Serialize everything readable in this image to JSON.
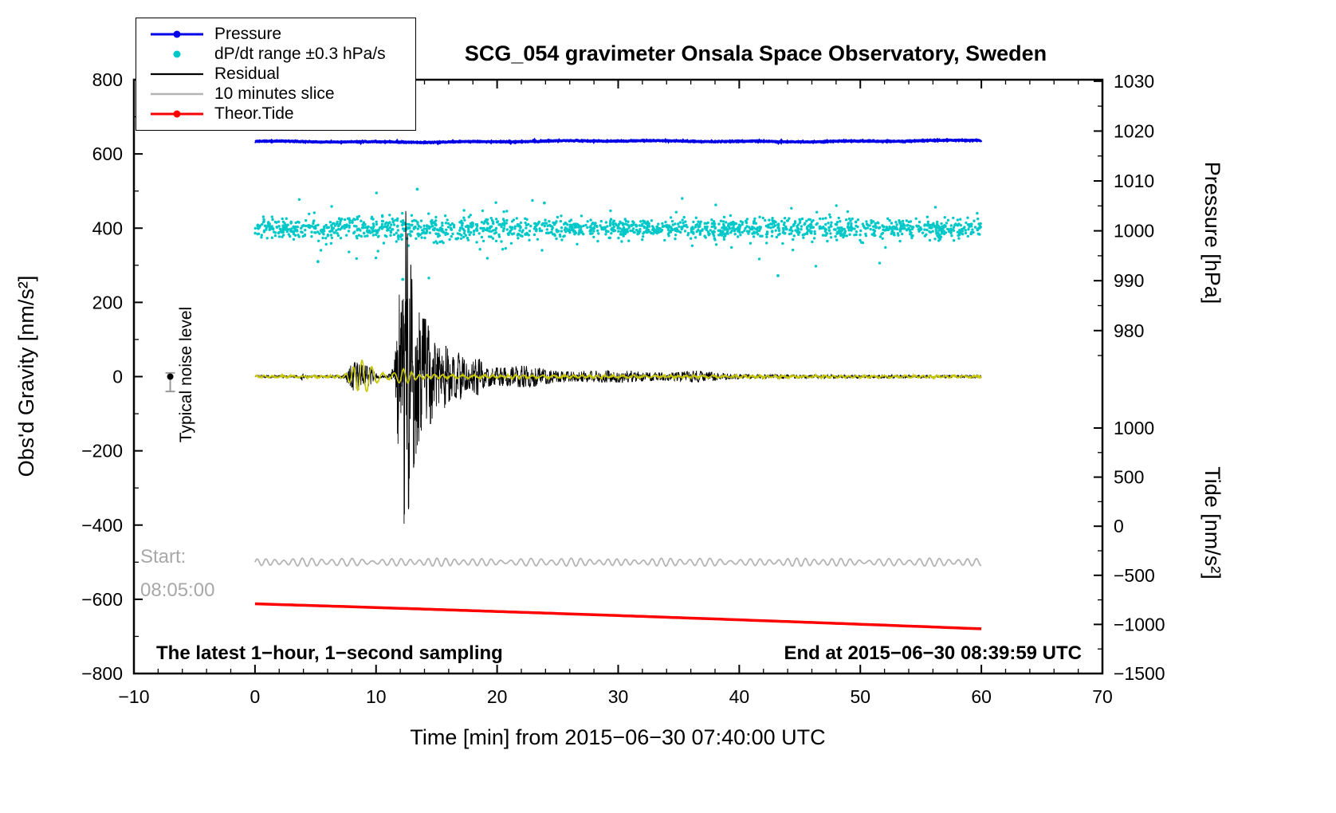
{
  "title": "SCG_054 gravimeter Onsala Space Observatory, Sweden",
  "legend": {
    "items": [
      {
        "label": "Pressure",
        "color": "#0000E8",
        "symbol": "line-dot"
      },
      {
        "label": "dP/dt range ±0.3 hPa/s",
        "color": "#00C8C8",
        "symbol": "dot"
      },
      {
        "label": "Residual",
        "color": "#000000",
        "symbol": "line"
      },
      {
        "label": "10 minutes slice",
        "color": "#B4B4B4",
        "symbol": "line"
      },
      {
        "label": "Theor.Tide",
        "color": "#FF0000",
        "symbol": "line-dot"
      }
    ]
  },
  "annotations": {
    "noise_label": "Typical noise level",
    "start_line1": "Start:",
    "start_line2": "08:05:00",
    "sampling_note": "The latest 1−hour, 1−second sampling",
    "end_note": "End at 2015−06−30 08:39:59 UTC"
  },
  "chart_data": {
    "type": "line",
    "x_axis": {
      "label": "Time [min] from 2015−06−30 07:40:00 UTC",
      "range": [
        -10,
        70
      ],
      "major_ticks": [
        -10,
        0,
        10,
        20,
        30,
        40,
        50,
        60,
        70
      ],
      "minor_step": 2
    },
    "left_axis": {
      "label": "Obs'd Gravity [nm/s²]",
      "range": [
        -800,
        800
      ],
      "major_ticks": [
        800,
        600,
        400,
        200,
        0,
        -200,
        -400,
        -600,
        -800
      ],
      "minor_step": 100
    },
    "pressure_axis": {
      "label": "Pressure [hPa]",
      "major_ticks": [
        1030,
        1020,
        1010,
        1000,
        990,
        980
      ],
      "minor_step": 5,
      "anchor_value": 1030,
      "anchor_gravity": 796,
      "gravity_per_hpa": 13.44
    },
    "tide_axis": {
      "label": "Tide [nm/s²]",
      "major_ticks": [
        1000,
        500,
        0,
        -500,
        -1000,
        -1500
      ],
      "minor_step": 250,
      "anchor_value": 1000,
      "anchor_gravity": -138.5,
      "gravity_per_unit": 0.2646
    },
    "series": [
      {
        "id": "pressure",
        "name": "Pressure",
        "type": "line",
        "axis": "pressure",
        "color": "#0000E8",
        "t_range": [
          0,
          60
        ],
        "mean_hpa": 1017.85,
        "noise_hpa": 0.1
      },
      {
        "id": "dpdt",
        "name": "dP/dt range ±0.3 hPa/s",
        "type": "scatter",
        "axis": "gravity",
        "color": "#00C8C8",
        "t_range": [
          0,
          60
        ],
        "center": 400,
        "std": 12,
        "count": 1700,
        "outliers": [
          {
            "t": 5.2,
            "v": 310
          },
          {
            "t": 12.2,
            "v": 262
          },
          {
            "t": 13.4,
            "v": 505
          },
          {
            "t": 23.9,
            "v": 468
          },
          {
            "t": 43.2,
            "v": 272
          }
        ]
      },
      {
        "id": "residual",
        "name": "Residual",
        "type": "line",
        "axis": "gravity",
        "color": "#000000",
        "t_range": [
          0,
          60
        ],
        "base_amplitude": 3,
        "quake": {
          "p_arrival_min": 7.2,
          "p_coda_amplitude": 40,
          "s_peak_min": 12.32,
          "peak_amplitude": 345,
          "decay_tau_min": 0.85
        }
      },
      {
        "id": "filtered",
        "name": "",
        "type": "line",
        "axis": "gravity",
        "color": "#C8C800",
        "t_range": [
          0,
          60
        ],
        "burst_center_min": 8.9,
        "burst_amplitude": 42
      },
      {
        "id": "slice",
        "name": "10 minutes slice",
        "type": "line",
        "axis": "gravity",
        "color": "#B4B4B4",
        "t_range": [
          0,
          60
        ],
        "center": -500,
        "amplitude": 9
      },
      {
        "id": "tide",
        "name": "Theor.Tide",
        "type": "line",
        "axis": "tide",
        "color": "#FF0000",
        "t_range": [
          0,
          60
        ],
        "start_value": -790,
        "end_value": -1045
      },
      {
        "id": "noise_marker",
        "name": "Typical noise level",
        "type": "point",
        "axis": "gravity",
        "color": "#000000",
        "t": -7,
        "value": 0,
        "error_low": -40,
        "error_high": 10
      }
    ]
  }
}
